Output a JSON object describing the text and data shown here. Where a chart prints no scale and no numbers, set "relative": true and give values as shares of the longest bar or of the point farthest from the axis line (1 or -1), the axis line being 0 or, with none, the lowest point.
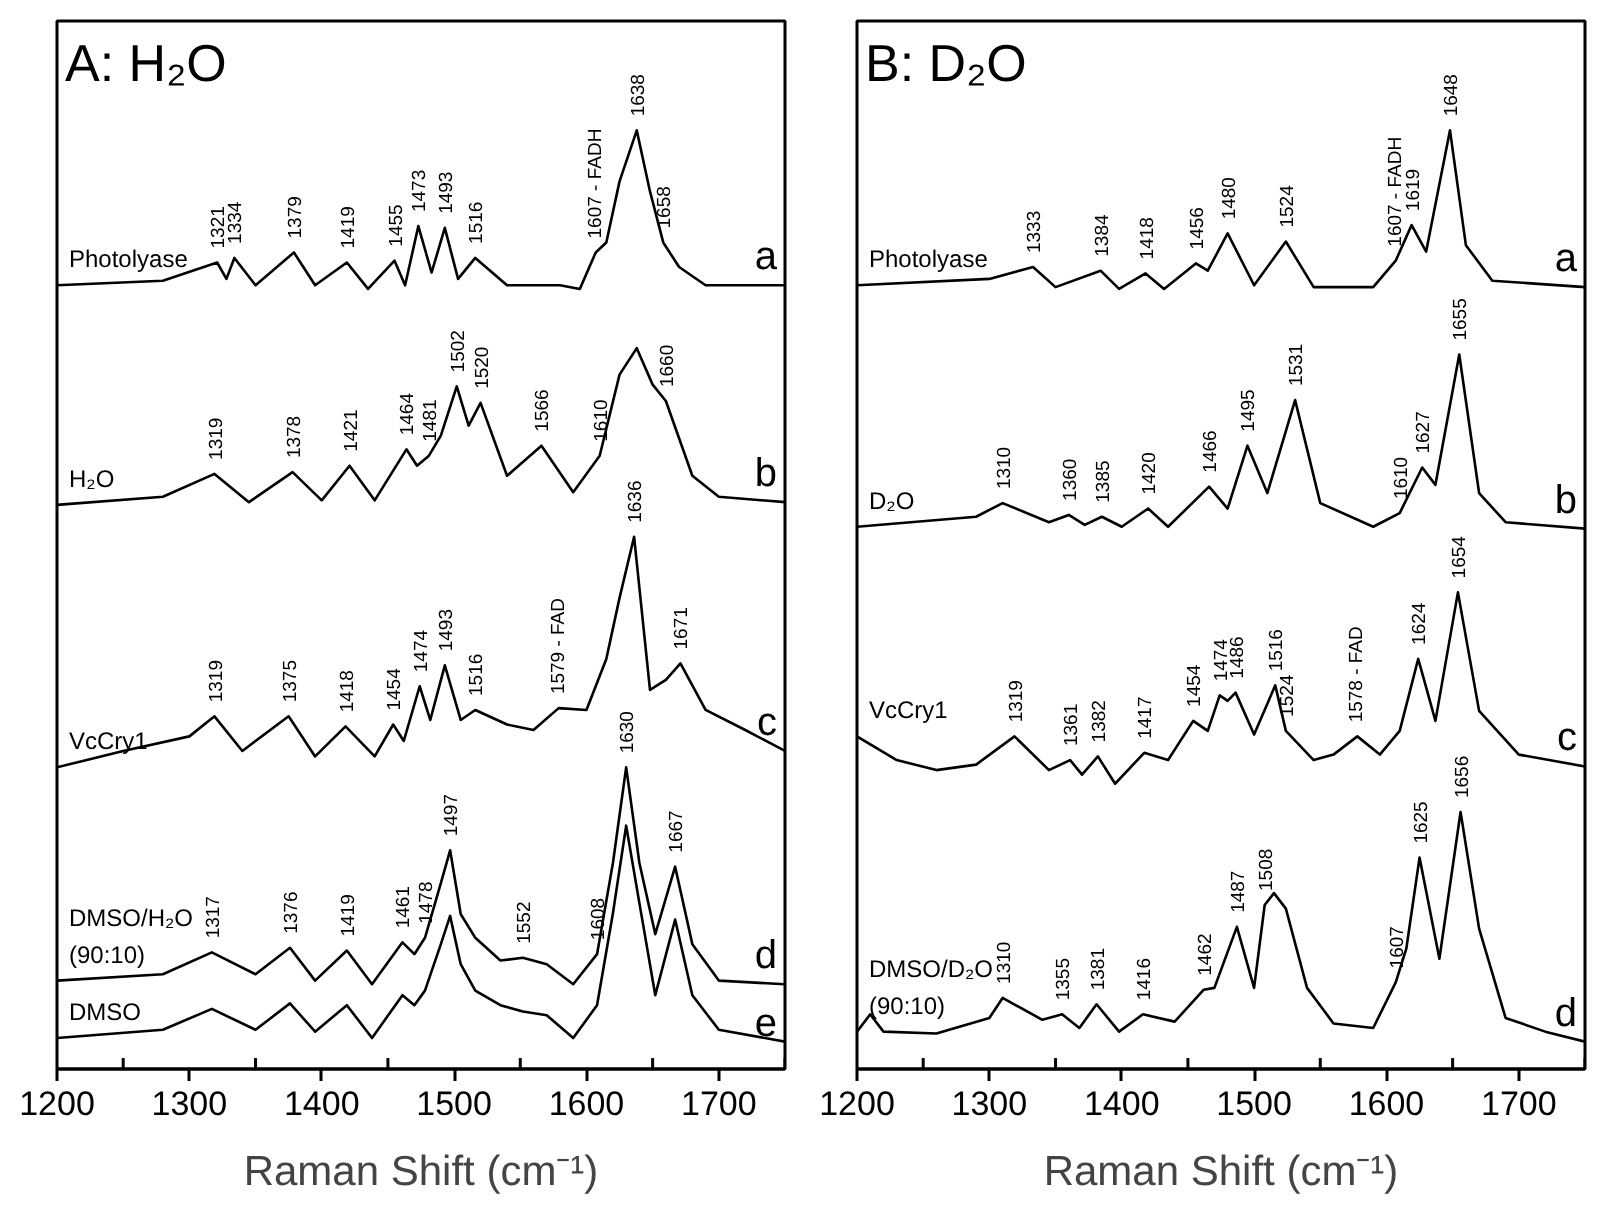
{
  "chart_data": [
    {
      "type": "line",
      "title": "A: H₂O",
      "xlabel": "Raman Shift (cm⁻¹)",
      "xlim": [
        1200,
        1750
      ],
      "xticks": [
        1200,
        {
          "value": 1250,
          "label": null
        },
        1300,
        {
          "value": 1350,
          "label": null
        },
        1400,
        {
          "value": 1450,
          "label": null
        },
        1500,
        {
          "value": 1550,
          "label": null
        },
        1600,
        {
          "value": 1650,
          "label": null
        },
        1700,
        {
          "value": 1750,
          "label": null
        }
      ],
      "relative": true,
      "tick_labels": "x",
      "series": [
        {
          "name": "Photolyase",
          "color": "#000000",
          "x": [
            1200,
            1280,
            1321,
            1328,
            1334,
            1350,
            1379,
            1395,
            1419,
            1435,
            1455,
            1463,
            1473,
            1483,
            1493,
            1503,
            1516,
            1540,
            1580,
            1595,
            1607,
            1615,
            1625,
            1638,
            1648,
            1658,
            1670,
            1690,
            1750
          ],
          "values": [
            0.83,
            0.835,
            0.855,
            0.837,
            0.86,
            0.83,
            0.866,
            0.83,
            0.855,
            0.826,
            0.857,
            0.83,
            0.895,
            0.844,
            0.893,
            0.837,
            0.86,
            0.83,
            0.83,
            0.826,
            0.866,
            0.877,
            0.944,
            1.0,
            0.933,
            0.877,
            0.85,
            0.83,
            0.83
          ]
        },
        {
          "name": "H₂O",
          "color": "#000000",
          "x": [
            1200,
            1280,
            1319,
            1345,
            1378,
            1400,
            1421,
            1440,
            1464,
            1472,
            1481,
            1490,
            1502,
            1511,
            1520,
            1540,
            1566,
            1590,
            1610,
            1625,
            1638,
            1650,
            1660,
            1680,
            1700,
            1750
          ],
          "values": [
            0.589,
            0.598,
            0.623,
            0.592,
            0.625,
            0.594,
            0.632,
            0.594,
            0.65,
            0.632,
            0.643,
            0.665,
            0.719,
            0.676,
            0.701,
            0.621,
            0.654,
            0.603,
            0.643,
            0.732,
            0.761,
            0.721,
            0.703,
            0.621,
            0.598,
            0.592
          ]
        },
        {
          "name": "VcCry1",
          "color": "#000000",
          "x": [
            1200,
            1250,
            1300,
            1319,
            1340,
            1375,
            1395,
            1418,
            1440,
            1454,
            1462,
            1474,
            1482,
            1493,
            1505,
            1516,
            1540,
            1560,
            1579,
            1600,
            1615,
            1625,
            1636,
            1648,
            1660,
            1671,
            1690,
            1720,
            1750
          ],
          "values": [
            0.301,
            0.319,
            0.335,
            0.357,
            0.319,
            0.357,
            0.313,
            0.346,
            0.313,
            0.348,
            0.33,
            0.39,
            0.353,
            0.413,
            0.353,
            0.364,
            0.348,
            0.342,
            0.366,
            0.364,
            0.42,
            0.487,
            0.554,
            0.386,
            0.397,
            0.415,
            0.364,
            0.342,
            0.319
          ]
        },
        {
          "name": "DMSO/H₂O\n(90:10)",
          "color": "#000000",
          "x": [
            1200,
            1280,
            1317,
            1350,
            1376,
            1395,
            1419,
            1438,
            1461,
            1470,
            1478,
            1490,
            1497,
            1505,
            1516,
            1535,
            1552,
            1570,
            1590,
            1608,
            1620,
            1630,
            1640,
            1652,
            1667,
            1680,
            1700,
            1750
          ],
          "values": [
            0.067,
            0.074,
            0.098,
            0.074,
            0.103,
            0.067,
            0.1,
            0.063,
            0.109,
            0.096,
            0.114,
            0.174,
            0.21,
            0.14,
            0.114,
            0.089,
            0.092,
            0.085,
            0.063,
            0.096,
            0.196,
            0.301,
            0.196,
            0.118,
            0.192,
            0.107,
            0.067,
            0.063
          ]
        },
        {
          "name": "DMSO",
          "color": "#000000",
          "x": [
            1200,
            1280,
            1317,
            1350,
            1376,
            1395,
            1419,
            1438,
            1461,
            1470,
            1478,
            1490,
            1497,
            1505,
            1516,
            1535,
            1552,
            1570,
            1590,
            1608,
            1620,
            1630,
            1640,
            1652,
            1667,
            1680,
            1700,
            1750
          ],
          "values": [
            0.004,
            0.013,
            0.036,
            0.013,
            0.042,
            0.011,
            0.04,
            0.004,
            0.051,
            0.04,
            0.056,
            0.107,
            0.138,
            0.085,
            0.056,
            0.04,
            0.033,
            0.029,
            0.004,
            0.04,
            0.141,
            0.237,
            0.152,
            0.051,
            0.134,
            0.051,
            0.013,
            0.0
          ]
        }
      ],
      "annotations": [
        "a",
        "b",
        "c",
        "d",
        "e",
        {
          "text": "1321",
          "x": 1321,
          "y": 0.855
        },
        {
          "text": "1334",
          "x": 1334,
          "y": 0.86
        },
        {
          "text": "1379",
          "x": 1379,
          "y": 0.866
        },
        {
          "text": "1419",
          "x": 1419,
          "y": 0.855
        },
        {
          "text": "1455",
          "x": 1455,
          "y": 0.857
        },
        {
          "text": "1473",
          "x": 1473,
          "y": 0.895
        },
        {
          "text": "1493",
          "x": 1493,
          "y": 0.893
        },
        {
          "text": "1516",
          "x": 1516,
          "y": 0.86
        },
        {
          "text": "1607 - FADH",
          "x": 1607,
          "y": 0.866
        },
        {
          "text": "1638",
          "x": 1638,
          "y": 1.0
        },
        {
          "text": "1658",
          "x": 1658,
          "y": 0.877
        },
        {
          "text": "1319",
          "x": 1319,
          "y": 0.623
        },
        {
          "text": "1378",
          "x": 1378,
          "y": 0.625
        },
        {
          "text": "1421",
          "x": 1421,
          "y": 0.632
        },
        {
          "text": "1464",
          "x": 1464,
          "y": 0.65
        },
        {
          "text": "1481",
          "x": 1481,
          "y": 0.643
        },
        {
          "text": "1502",
          "x": 1502,
          "y": 0.719
        },
        {
          "text": "1520",
          "x": 1520,
          "y": 0.701
        },
        {
          "text": "1566",
          "x": 1566,
          "y": 0.654
        },
        {
          "text": "1610",
          "x": 1610,
          "y": 0.643
        },
        {
          "text": "1660",
          "x": 1660,
          "y": 0.703
        },
        {
          "text": "1319",
          "x": 1319,
          "y": 0.357
        },
        {
          "text": "1375",
          "x": 1375,
          "y": 0.357
        },
        {
          "text": "1418",
          "x": 1418,
          "y": 0.346
        },
        {
          "text": "1454",
          "x": 1454,
          "y": 0.348
        },
        {
          "text": "1474",
          "x": 1474,
          "y": 0.39
        },
        {
          "text": "1493",
          "x": 1493,
          "y": 0.413
        },
        {
          "text": "1516",
          "x": 1516,
          "y": 0.364
        },
        {
          "text": "1579 - FAD",
          "x": 1579,
          "y": 0.366
        },
        {
          "text": "1636",
          "x": 1636,
          "y": 0.554
        },
        {
          "text": "1671",
          "x": 1671,
          "y": 0.415
        },
        {
          "text": "1317",
          "x": 1317,
          "y": 0.098
        },
        {
          "text": "1376",
          "x": 1376,
          "y": 0.103
        },
        {
          "text": "1419",
          "x": 1419,
          "y": 0.1
        },
        {
          "text": "1461",
          "x": 1461,
          "y": 0.109
        },
        {
          "text": "1478",
          "x": 1478,
          "y": 0.114
        },
        {
          "text": "1497",
          "x": 1497,
          "y": 0.21
        },
        {
          "text": "1552",
          "x": 1552,
          "y": 0.092
        },
        {
          "text": "1608",
          "x": 1608,
          "y": 0.096
        },
        {
          "text": "1630",
          "x": 1630,
          "y": 0.301
        },
        {
          "text": "1667",
          "x": 1667,
          "y": 0.192
        }
      ]
    },
    {
      "type": "line",
      "title": "B: D₂O",
      "xlabel": "Raman Shift (cm⁻¹)",
      "xlim": [
        1200,
        1750
      ],
      "xticks": [
        1200,
        {
          "value": 1250,
          "label": null
        },
        1300,
        {
          "value": 1350,
          "label": null
        },
        1400,
        {
          "value": 1450,
          "label": null
        },
        1500,
        {
          "value": 1550,
          "label": null
        },
        1600,
        {
          "value": 1650,
          "label": null
        },
        1700,
        {
          "value": 1750,
          "label": null
        }
      ],
      "relative": true,
      "tick_labels": "x",
      "series": [
        {
          "name": "Photolyase",
          "color": "#000000",
          "x": [
            1200,
            1300,
            1333,
            1350,
            1384,
            1398,
            1418,
            1432,
            1456,
            1465,
            1480,
            1500,
            1524,
            1545,
            1590,
            1607,
            1619,
            1630,
            1648,
            1660,
            1680,
            1750
          ],
          "values": [
            0.83,
            0.837,
            0.85,
            0.828,
            0.846,
            0.826,
            0.843,
            0.826,
            0.854,
            0.846,
            0.887,
            0.83,
            0.878,
            0.828,
            0.828,
            0.857,
            0.896,
            0.867,
            1.0,
            0.874,
            0.835,
            0.828
          ]
        },
        {
          "name": "D₂O",
          "color": "#000000",
          "x": [
            1200,
            1290,
            1310,
            1345,
            1360,
            1372,
            1385,
            1400,
            1420,
            1435,
            1466,
            1480,
            1495,
            1510,
            1531,
            1550,
            1590,
            1610,
            1627,
            1637,
            1655,
            1670,
            1690,
            1750
          ],
          "values": [
            0.565,
            0.576,
            0.591,
            0.57,
            0.578,
            0.567,
            0.576,
            0.565,
            0.585,
            0.565,
            0.609,
            0.585,
            0.654,
            0.602,
            0.704,
            0.591,
            0.565,
            0.58,
            0.63,
            0.611,
            0.754,
            0.602,
            0.57,
            0.563
          ]
        },
        {
          "name": "VcCry1",
          "color": "#000000",
          "x": [
            1200,
            1230,
            1260,
            1290,
            1319,
            1345,
            1361,
            1370,
            1382,
            1395,
            1417,
            1435,
            1454,
            1465,
            1474,
            1480,
            1486,
            1500,
            1516,
            1524,
            1545,
            1560,
            1578,
            1595,
            1610,
            1624,
            1637,
            1654,
            1670,
            1700,
            1750
          ],
          "values": [
            0.335,
            0.309,
            0.298,
            0.304,
            0.335,
            0.298,
            0.309,
            0.293,
            0.313,
            0.283,
            0.317,
            0.309,
            0.352,
            0.341,
            0.38,
            0.374,
            0.383,
            0.337,
            0.391,
            0.341,
            0.309,
            0.315,
            0.335,
            0.315,
            0.341,
            0.42,
            0.352,
            0.493,
            0.363,
            0.315,
            0.302
          ]
        },
        {
          "name": "DMSO/D₂O\n(90:10)",
          "color": "#000000",
          "x": [
            1200,
            1210,
            1220,
            1260,
            1300,
            1310,
            1340,
            1355,
            1368,
            1381,
            1398,
            1416,
            1440,
            1462,
            1470,
            1487,
            1500,
            1508,
            1515,
            1524,
            1540,
            1560,
            1590,
            1607,
            1615,
            1625,
            1640,
            1656,
            1670,
            1690,
            1720,
            1750
          ],
          "values": [
            0.011,
            0.03,
            0.011,
            0.009,
            0.026,
            0.048,
            0.024,
            0.03,
            0.015,
            0.041,
            0.011,
            0.03,
            0.022,
            0.057,
            0.059,
            0.126,
            0.059,
            0.15,
            0.163,
            0.146,
            0.059,
            0.02,
            0.015,
            0.065,
            0.102,
            0.202,
            0.091,
            0.252,
            0.124,
            0.026,
            0.011,
            0.0
          ]
        }
      ],
      "annotations": [
        "a",
        "b",
        "c",
        "d",
        {
          "text": "1333",
          "x": 1333,
          "y": 0.85
        },
        {
          "text": "1384",
          "x": 1384,
          "y": 0.846
        },
        {
          "text": "1418",
          "x": 1418,
          "y": 0.843
        },
        {
          "text": "1456",
          "x": 1456,
          "y": 0.854
        },
        {
          "text": "1480",
          "x": 1480,
          "y": 0.887
        },
        {
          "text": "1524",
          "x": 1524,
          "y": 0.878
        },
        {
          "text": "1607 - FADH",
          "x": 1607,
          "y": 0.857
        },
        {
          "text": "1619",
          "x": 1619,
          "y": 0.896
        },
        {
          "text": "1648",
          "x": 1648,
          "y": 1.0
        },
        {
          "text": "1310",
          "x": 1310,
          "y": 0.591
        },
        {
          "text": "1360",
          "x": 1360,
          "y": 0.578
        },
        {
          "text": "1385",
          "x": 1385,
          "y": 0.576
        },
        {
          "text": "1420",
          "x": 1420,
          "y": 0.585
        },
        {
          "text": "1466",
          "x": 1466,
          "y": 0.609
        },
        {
          "text": "1495",
          "x": 1495,
          "y": 0.654
        },
        {
          "text": "1531",
          "x": 1531,
          "y": 0.704
        },
        {
          "text": "1610",
          "x": 1610,
          "y": 0.58
        },
        {
          "text": "1627",
          "x": 1627,
          "y": 0.63
        },
        {
          "text": "1655",
          "x": 1655,
          "y": 0.754
        },
        {
          "text": "1319",
          "x": 1319,
          "y": 0.335
        },
        {
          "text": "1361",
          "x": 1361,
          "y": 0.309
        },
        {
          "text": "1382",
          "x": 1382,
          "y": 0.313
        },
        {
          "text": "1417",
          "x": 1417,
          "y": 0.317
        },
        {
          "text": "1454",
          "x": 1454,
          "y": 0.352
        },
        {
          "text": "1474",
          "x": 1474,
          "y": 0.38
        },
        {
          "text": "1486",
          "x": 1486,
          "y": 0.383
        },
        {
          "text": "1516",
          "x": 1516,
          "y": 0.391
        },
        {
          "text": "1524",
          "x": 1524,
          "y": 0.341
        },
        {
          "text": "1578 - FAD",
          "x": 1578,
          "y": 0.335
        },
        {
          "text": "1624",
          "x": 1624,
          "y": 0.42
        },
        {
          "text": "1654",
          "x": 1654,
          "y": 0.493
        },
        {
          "text": "1310",
          "x": 1310,
          "y": 0.048
        },
        {
          "text": "1355",
          "x": 1355,
          "y": 0.03
        },
        {
          "text": "1381",
          "x": 1381,
          "y": 0.041
        },
        {
          "text": "1416",
          "x": 1416,
          "y": 0.03
        },
        {
          "text": "1462",
          "x": 1462,
          "y": 0.057
        },
        {
          "text": "1487",
          "x": 1487,
          "y": 0.126
        },
        {
          "text": "1508",
          "x": 1508,
          "y": 0.15
        },
        {
          "text": "1607",
          "x": 1607,
          "y": 0.065
        },
        {
          "text": "1625",
          "x": 1625,
          "y": 0.202
        },
        {
          "text": "1656",
          "x": 1656,
          "y": 0.252
        }
      ]
    }
  ]
}
